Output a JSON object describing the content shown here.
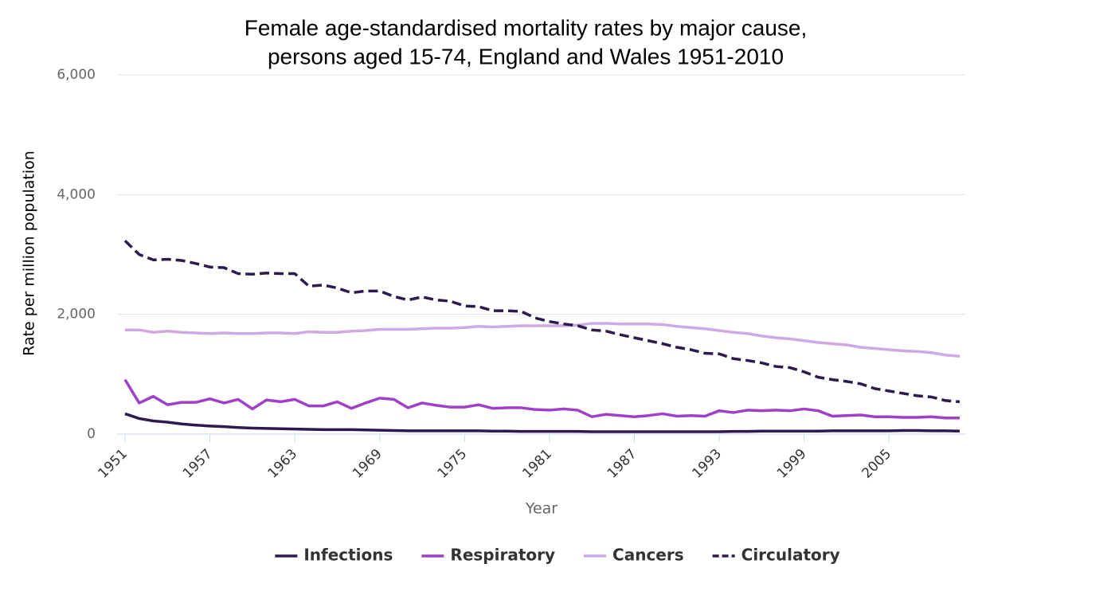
{
  "chart_data": {
    "type": "line",
    "title": [
      "Female age-standardised mortality rates by major cause,",
      "persons aged 15-74, England and Wales 1951-2010"
    ],
    "x_label": "Year",
    "y_label": "Rate per million population",
    "x": [
      1951,
      1952,
      1953,
      1954,
      1955,
      1956,
      1957,
      1958,
      1959,
      1960,
      1961,
      1962,
      1963,
      1964,
      1965,
      1966,
      1967,
      1968,
      1969,
      1970,
      1971,
      1972,
      1973,
      1974,
      1975,
      1976,
      1977,
      1978,
      1979,
      1980,
      1981,
      1982,
      1983,
      1984,
      1985,
      1986,
      1987,
      1988,
      1989,
      1990,
      1991,
      1992,
      1993,
      1994,
      1995,
      1996,
      1997,
      1998,
      1999,
      2000,
      2001,
      2002,
      2003,
      2004,
      2005,
      2006,
      2007,
      2008,
      2009,
      2010
    ],
    "xlim": [
      1951,
      2010
    ],
    "xticks": [
      1951,
      1957,
      1963,
      1969,
      1975,
      1981,
      1987,
      1993,
      1999,
      2005
    ],
    "ylim": [
      0,
      6000
    ],
    "yticks": [
      0,
      {
        "value": 2000,
        "label": "2,000"
      },
      {
        "value": 4000,
        "label": "4,000"
      },
      {
        "value": 6000,
        "label": "6,000"
      }
    ],
    "grid": true,
    "legend": "bottom",
    "series": [
      {
        "name": "Infections",
        "color": "#2d1a4f",
        "dash": "solid",
        "values": [
          340,
          260,
          220,
          200,
          170,
          150,
          135,
          125,
          110,
          100,
          95,
          90,
          85,
          80,
          75,
          75,
          75,
          70,
          65,
          60,
          55,
          55,
          55,
          55,
          55,
          55,
          50,
          50,
          45,
          45,
          45,
          45,
          45,
          40,
          40,
          40,
          40,
          40,
          40,
          40,
          40,
          40,
          40,
          45,
          45,
          50,
          50,
          50,
          50,
          50,
          55,
          55,
          55,
          55,
          55,
          60,
          60,
          55,
          55,
          50
        ]
      },
      {
        "name": "Respiratory",
        "color": "#a040c8",
        "dash": "solid",
        "values": [
          910,
          520,
          630,
          490,
          530,
          530,
          590,
          520,
          580,
          420,
          570,
          540,
          580,
          470,
          470,
          540,
          430,
          520,
          600,
          580,
          440,
          520,
          480,
          450,
          450,
          490,
          430,
          440,
          440,
          410,
          400,
          420,
          400,
          290,
          330,
          310,
          290,
          310,
          340,
          300,
          310,
          300,
          390,
          360,
          400,
          390,
          400,
          390,
          420,
          390,
          300,
          310,
          320,
          290,
          290,
          280,
          280,
          290,
          270,
          270
        ]
      },
      {
        "name": "Cancers",
        "color": "#cfa8e6",
        "dash": "solid",
        "values": [
          1740,
          1740,
          1700,
          1720,
          1700,
          1690,
          1680,
          1690,
          1680,
          1680,
          1690,
          1690,
          1680,
          1710,
          1700,
          1700,
          1720,
          1730,
          1750,
          1750,
          1750,
          1760,
          1770,
          1770,
          1780,
          1800,
          1790,
          1800,
          1810,
          1810,
          1810,
          1810,
          1820,
          1850,
          1850,
          1840,
          1840,
          1840,
          1830,
          1800,
          1780,
          1760,
          1730,
          1700,
          1680,
          1640,
          1610,
          1590,
          1560,
          1530,
          1510,
          1490,
          1450,
          1430,
          1410,
          1390,
          1380,
          1360,
          1320,
          1300
        ]
      },
      {
        "name": "Circulatory",
        "color": "#2d1a4f",
        "dash": "dashed",
        "values": [
          3230,
          3000,
          2910,
          2920,
          2900,
          2850,
          2790,
          2780,
          2680,
          2670,
          2690,
          2680,
          2680,
          2470,
          2490,
          2440,
          2360,
          2390,
          2390,
          2300,
          2240,
          2290,
          2240,
          2220,
          2140,
          2130,
          2060,
          2060,
          2050,
          1940,
          1880,
          1840,
          1810,
          1740,
          1720,
          1660,
          1610,
          1560,
          1510,
          1450,
          1410,
          1350,
          1340,
          1260,
          1230,
          1190,
          1130,
          1110,
          1040,
          950,
          910,
          880,
          840,
          760,
          720,
          680,
          640,
          620,
          560,
          540
        ]
      }
    ]
  }
}
